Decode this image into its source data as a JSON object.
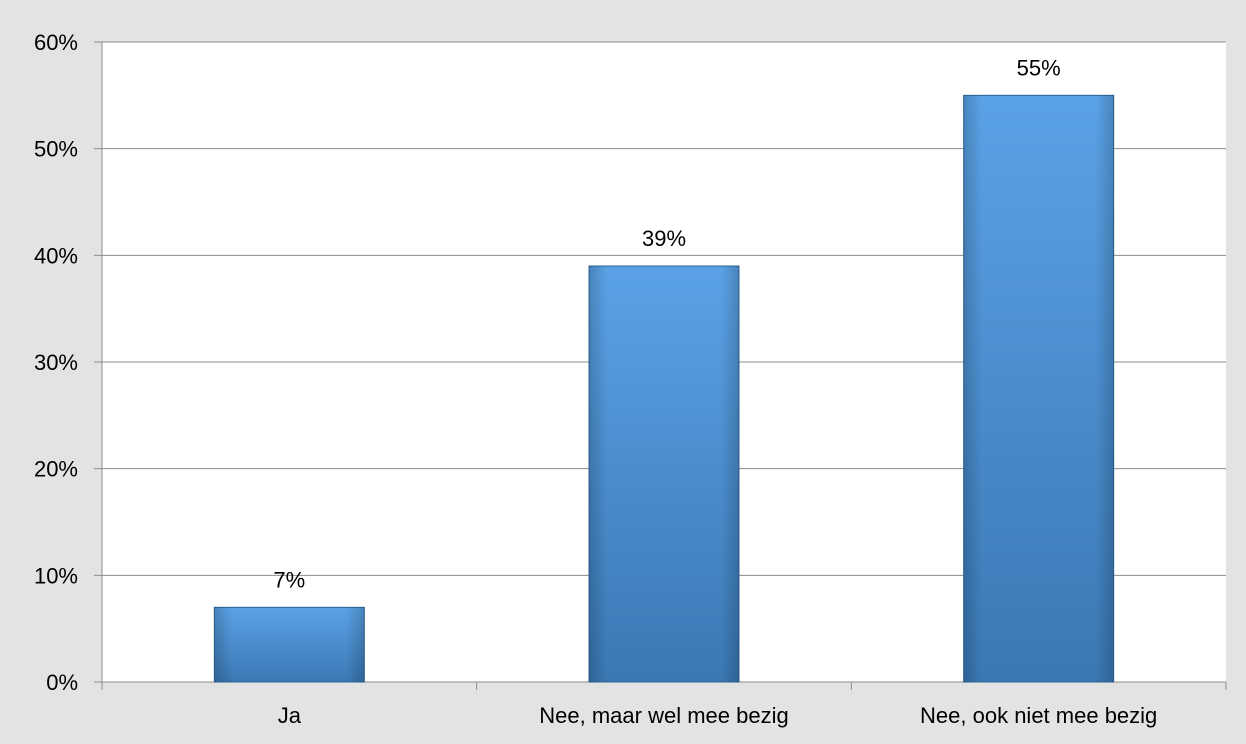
{
  "chart_data": {
    "type": "bar",
    "title": "",
    "xlabel": "",
    "ylabel": "",
    "categories": [
      "Ja",
      "Nee, maar wel mee bezig",
      "Nee, ook niet mee bezig"
    ],
    "values": [
      7,
      39,
      55
    ],
    "data_labels": [
      "7%",
      "39%",
      "55%"
    ],
    "ylim": [
      0,
      60
    ],
    "y_ticks": [
      0,
      10,
      20,
      30,
      40,
      50,
      60
    ],
    "y_tick_labels": [
      "0%",
      "10%",
      "20%",
      "30%",
      "40%",
      "50%",
      "60%"
    ],
    "grid": true,
    "legend": "none",
    "colors": {
      "background": "#e3e3e3",
      "plot_area": "#ffffff",
      "bar_light": "#5aa2e6",
      "bar_dark": "#3a78b4",
      "bar_edge": "#2e6396",
      "gridline": "#8c8c8c",
      "axis": "#8c8c8c",
      "text": "#000000"
    }
  }
}
